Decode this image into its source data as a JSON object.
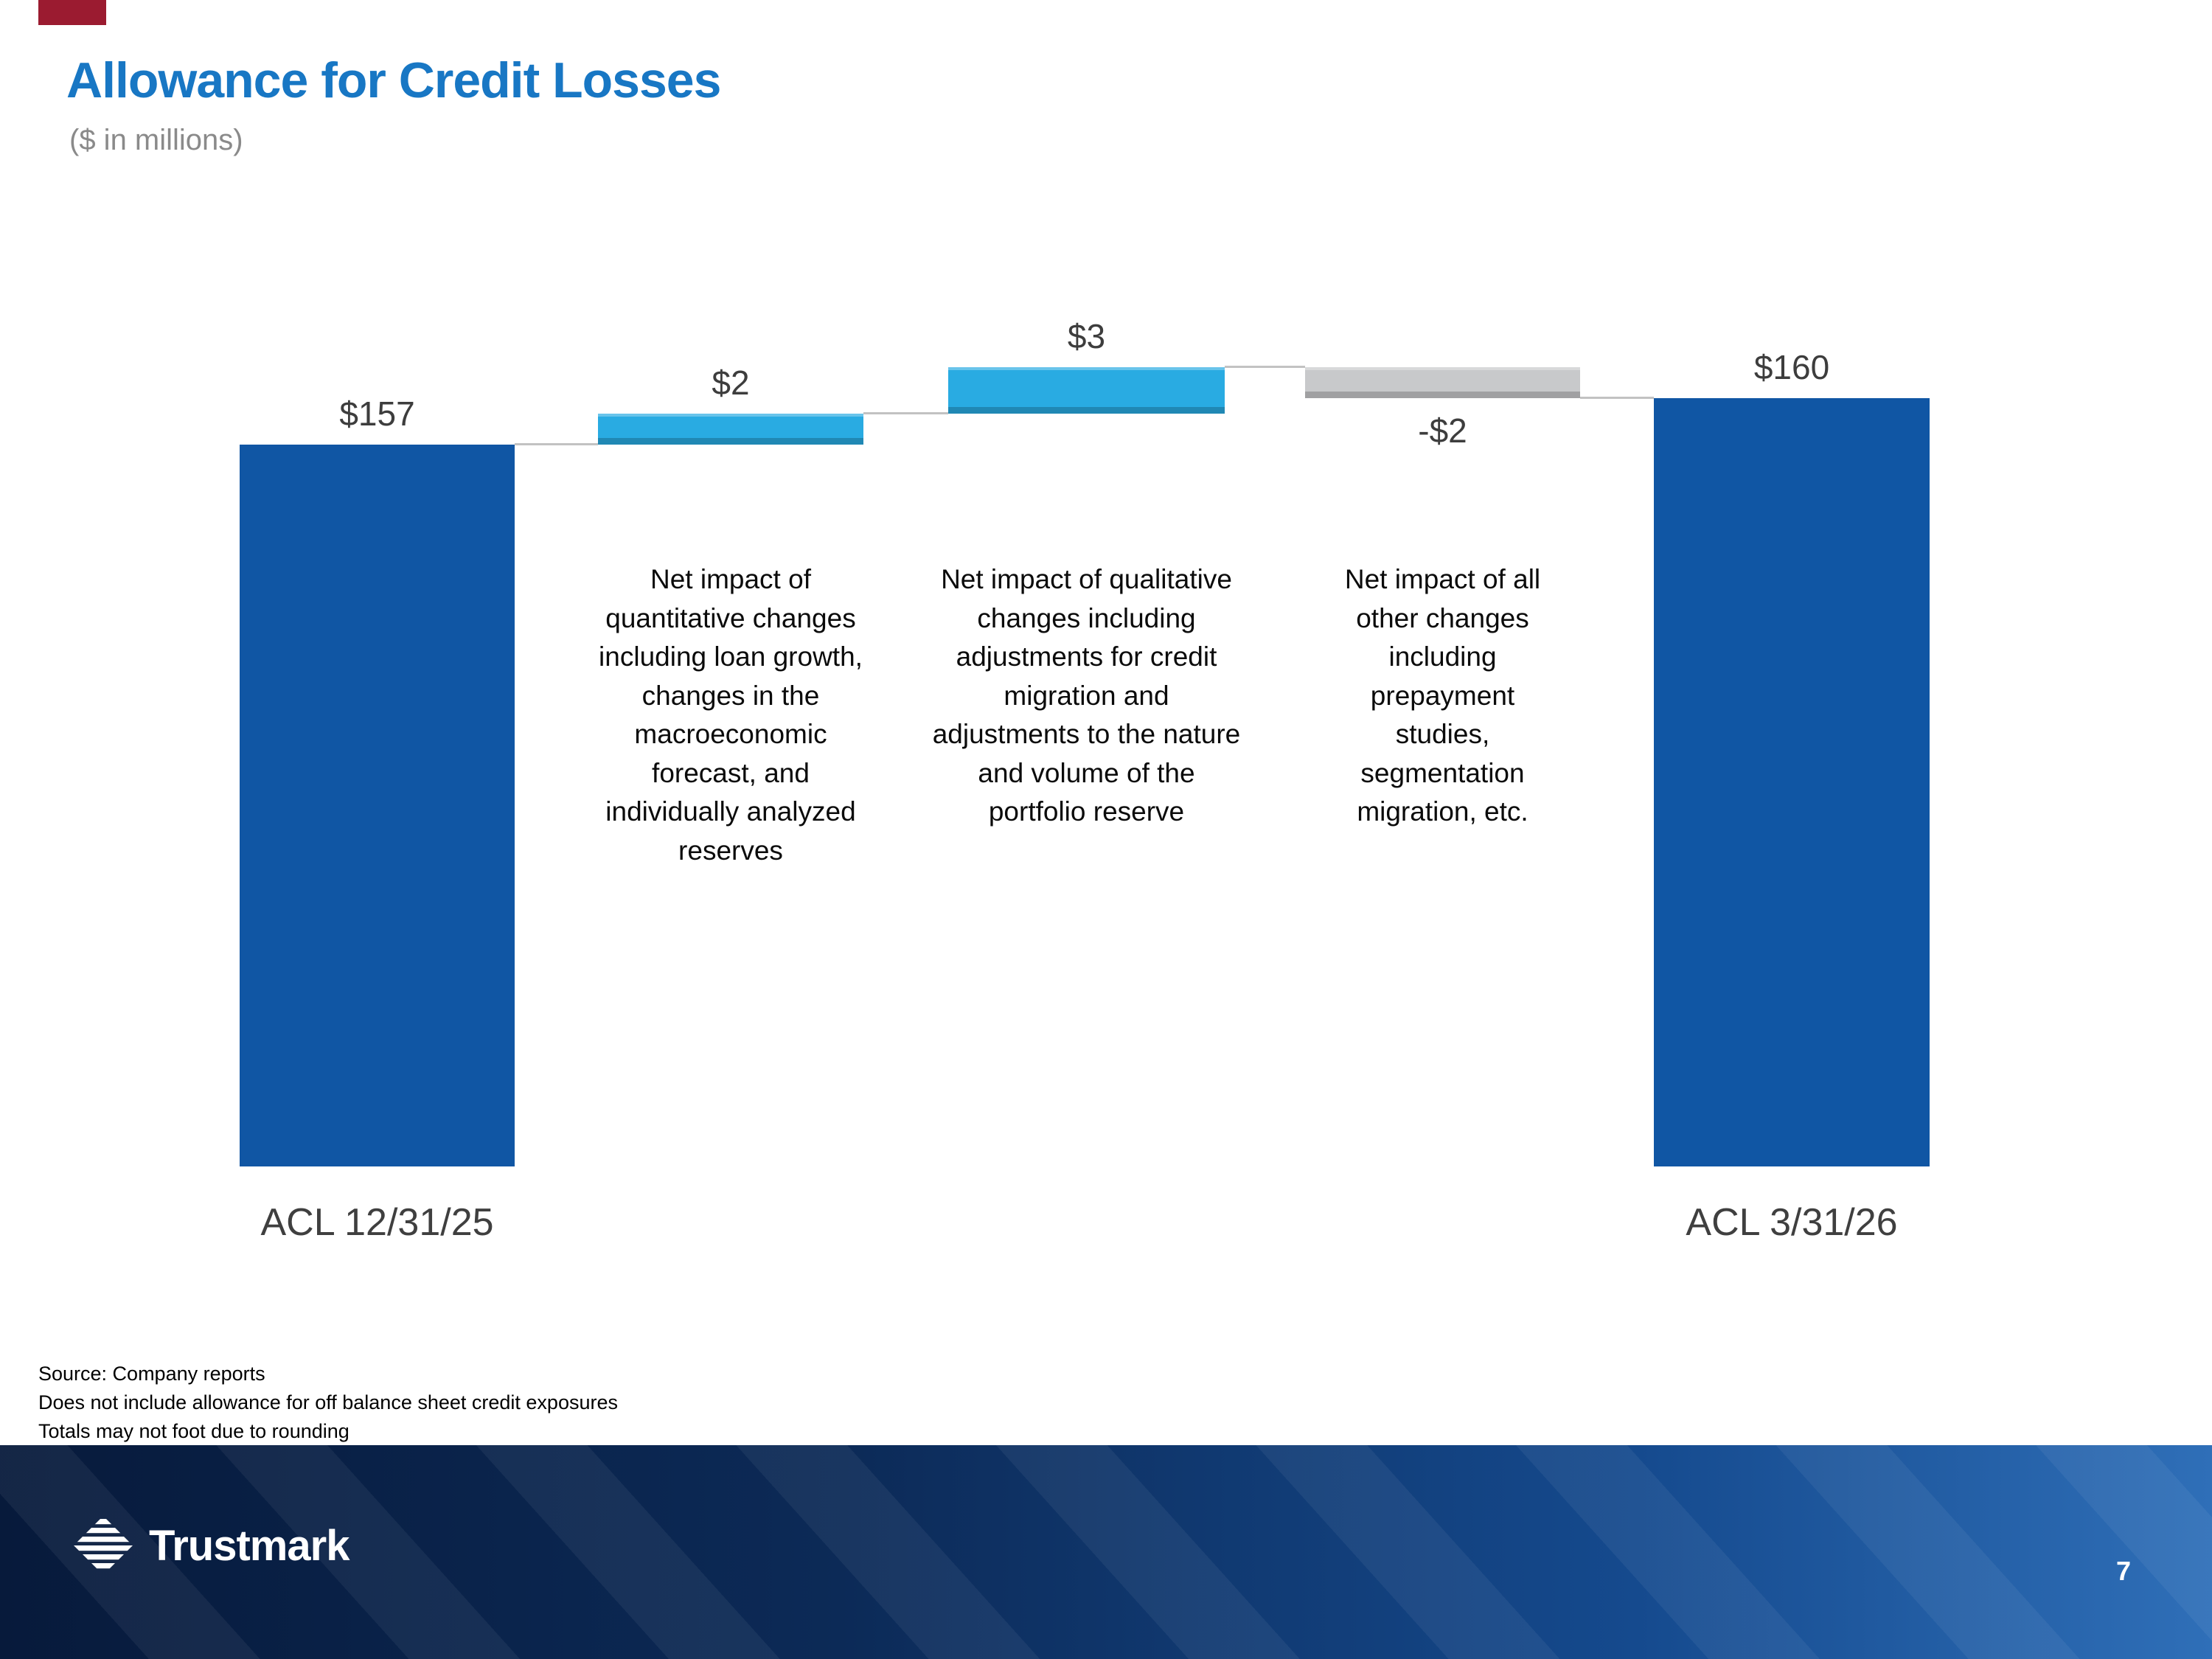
{
  "slide": {
    "accent_color": "#9B1B30"
  },
  "header": {
    "title": "Allowance for Credit Losses",
    "subtitle": "($ in millions)",
    "title_color": "#1877C4"
  },
  "chart_data": {
    "type": "bar",
    "subtype": "waterfall",
    "unit": "$ in millions",
    "connector_color": "#C2C2C2",
    "bars": [
      {
        "kind": "total",
        "value": 157,
        "display": "$157",
        "axis_label": "ACL 12/31/25",
        "color": "#1056A4"
      },
      {
        "kind": "increase",
        "value": 2,
        "display": "$2",
        "color": "#29ABE2",
        "description": "Net impact of quantitative changes including loan growth, changes in the macroeconomic forecast, and individually analyzed reserves"
      },
      {
        "kind": "increase",
        "value": 3,
        "display": "$3",
        "color": "#29ABE2",
        "description": "Net impact of qualitative changes including adjustments for credit migration and adjustments to the nature and volume of the portfolio reserve"
      },
      {
        "kind": "decrease",
        "value": -2,
        "display": "-$2",
        "color": "#C8C9CB",
        "description": "Net impact of all other changes including prepayment studies, segmentation migration, etc."
      },
      {
        "kind": "total",
        "value": 160,
        "display": "$160",
        "axis_label": "ACL 3/31/26",
        "color": "#1056A4"
      }
    ]
  },
  "footnotes": [
    "Source: Company reports",
    "Does not include allowance for off balance sheet credit exposures",
    "Totals may not foot due to rounding"
  ],
  "footer": {
    "brand": "Trustmark",
    "page_number": "7"
  }
}
